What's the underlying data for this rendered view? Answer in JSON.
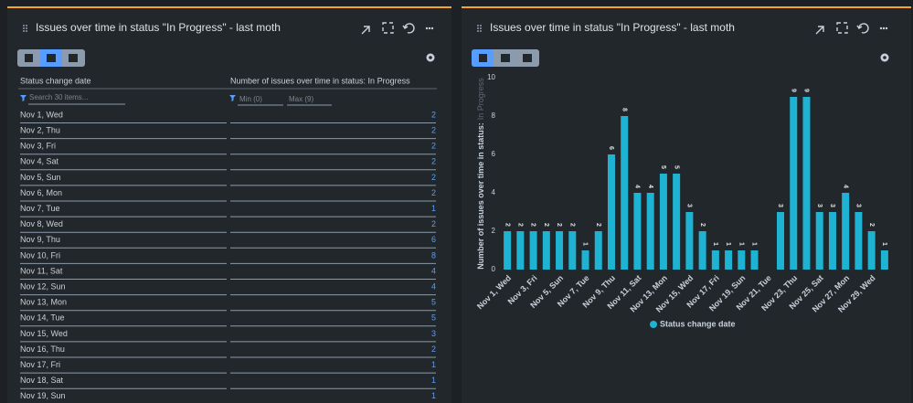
{
  "left_panel": {
    "title": "Issues over time in status \"In Progress\" - last moth",
    "table": {
      "headers": [
        "Status change date",
        "Number of issues over time in status: In Progress"
      ],
      "filters": {
        "search": "Search 30 items...",
        "min": "Min (0)",
        "max": "Max (9)"
      },
      "rows": [
        [
          "Nov 1, Wed",
          2
        ],
        [
          "Nov 2, Thu",
          2
        ],
        [
          "Nov 3, Fri",
          2
        ],
        [
          "Nov 4, Sat",
          2
        ],
        [
          "Nov 5, Sun",
          2
        ],
        [
          "Nov 6, Mon",
          2
        ],
        [
          "Nov 7, Tue",
          1
        ],
        [
          "Nov 8, Wed",
          2
        ],
        [
          "Nov 9, Thu",
          6
        ],
        [
          "Nov 10, Fri",
          8
        ],
        [
          "Nov 11, Sat",
          4
        ],
        [
          "Nov 12, Sun",
          4
        ],
        [
          "Nov 13, Mon",
          5
        ],
        [
          "Nov 14, Tue",
          5
        ],
        [
          "Nov 15, Wed",
          3
        ],
        [
          "Nov 16, Thu",
          2
        ],
        [
          "Nov 17, Fri",
          1
        ],
        [
          "Nov 18, Sat",
          1
        ],
        [
          "Nov 19, Sun",
          1
        ]
      ]
    }
  },
  "right_panel": {
    "title": "Issues over time in status \"In Progress\" - last moth"
  },
  "chart_data": {
    "type": "bar",
    "ylabel": "Number of issues over time in status:",
    "ylabel_status": "In Progress",
    "categories": [
      "Nov 1, Wed",
      null,
      "Nov 3, Fri",
      null,
      "Nov 5, Sun",
      null,
      "Nov 7, Tue",
      null,
      "Nov 9, Thu",
      null,
      "Nov 11, Sat",
      null,
      "Nov 13, Mon",
      null,
      "Nov 15, Wed",
      null,
      "Nov 17, Fri",
      null,
      "Nov 19, Sun",
      null,
      "Nov 21, Tue",
      null,
      "Nov 23, Thu",
      null,
      "Nov 25, Sat",
      null,
      "Nov 27, Mon",
      null,
      "Nov 29, Wed",
      null
    ],
    "series": [
      {
        "name": "Status change date",
        "color": "#1fb3d3",
        "values": [
          2,
          2,
          2,
          2,
          2,
          2,
          1,
          2,
          6,
          8,
          4,
          4,
          5,
          5,
          3,
          2,
          1,
          1,
          1,
          1,
          null,
          3,
          9,
          9,
          3,
          3,
          4,
          3,
          2,
          1
        ]
      }
    ],
    "ylim": [
      0,
      10
    ],
    "yticks": [
      0,
      2,
      4,
      6,
      8,
      10
    ],
    "legend": "bottom"
  }
}
